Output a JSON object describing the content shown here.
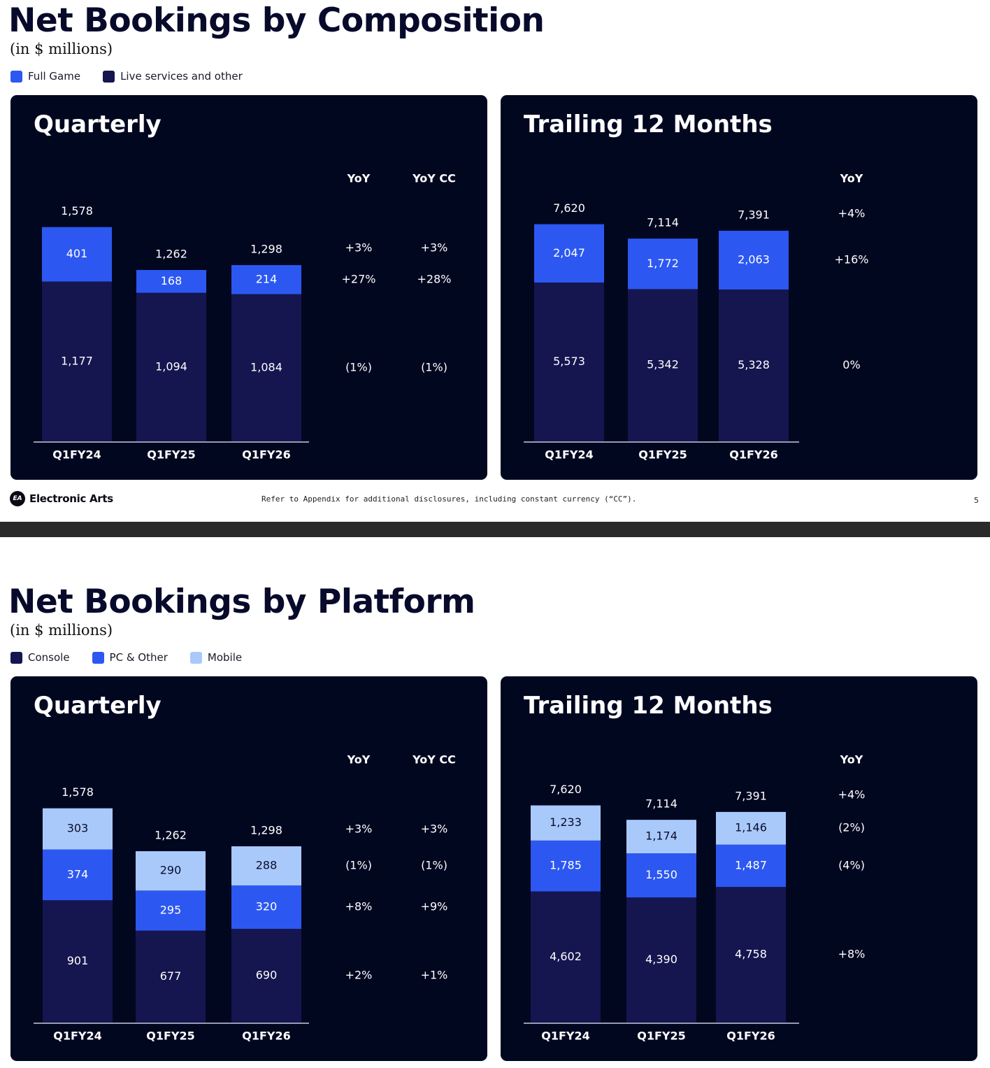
{
  "colors": {
    "panel_bg": "#020720",
    "full_game": "#2c58f1",
    "live_services": "#15154f",
    "console": "#15154f",
    "pc_other": "#2c58f1",
    "mobile": "#a9c9fb",
    "text_light": "#ffffff"
  },
  "slide1": {
    "title": "Net Bookings by Composition",
    "subtitle": "(in $ millions)",
    "legend": [
      {
        "label": "Full Game",
        "color": "#2c58f1"
      },
      {
        "label": "Live services and other",
        "color": "#15154f"
      }
    ],
    "footer": {
      "logo_text": "Electronic Arts",
      "logo_icon": "EA",
      "note": "Refer to Appendix for additional disclosures, including constant currency (“CC”).",
      "page": "5"
    }
  },
  "slide2": {
    "title": "Net Bookings by Platform",
    "subtitle": "(in $ millions)",
    "legend": [
      {
        "label": "Console",
        "color": "#15154f"
      },
      {
        "label": "PC & Other",
        "color": "#2c58f1"
      },
      {
        "label": "Mobile",
        "color": "#a9c9fb"
      }
    ]
  },
  "chart_data": [
    {
      "id": "composition_quarterly",
      "type": "bar",
      "stacked": true,
      "title": "Quarterly",
      "categories": [
        "Q1FY24",
        "Q1FY25",
        "Q1FY26"
      ],
      "series": [
        {
          "name": "Live services and other",
          "color": "#15154f",
          "values": [
            1177,
            1094,
            1084
          ],
          "labels": [
            "1,177",
            "1,094",
            "1,084"
          ]
        },
        {
          "name": "Full Game",
          "color": "#2c58f1",
          "values": [
            401,
            168,
            214
          ],
          "labels": [
            "401",
            "168",
            "214"
          ]
        }
      ],
      "totals": [
        1578,
        1262,
        1298
      ],
      "total_labels": [
        "1,578",
        "1,262",
        "1,298"
      ],
      "ylim": [
        0,
        1700
      ],
      "yoy_columns": [
        {
          "header": "YoY",
          "rows": [
            {
              "text": "+3%",
              "ref": "total"
            },
            {
              "text": "+27%",
              "ref": "Full Game"
            },
            {
              "text": "(1%)",
              "ref": "Live services and other"
            }
          ]
        },
        {
          "header": "YoY CC",
          "rows": [
            {
              "text": "+3%",
              "ref": "total"
            },
            {
              "text": "+28%",
              "ref": "Full Game"
            },
            {
              "text": "(1%)",
              "ref": "Live services and other"
            }
          ]
        }
      ]
    },
    {
      "id": "composition_ttm",
      "type": "bar",
      "stacked": true,
      "title": "Trailing 12 Months",
      "categories": [
        "Q1FY24",
        "Q1FY25",
        "Q1FY26"
      ],
      "series": [
        {
          "name": "Live services and other",
          "color": "#15154f",
          "values": [
            5573,
            5342,
            5328
          ],
          "labels": [
            "5,573",
            "5,342",
            "5,328"
          ]
        },
        {
          "name": "Full Game",
          "color": "#2c58f1",
          "values": [
            2047,
            1772,
            2063
          ],
          "labels": [
            "2,047",
            "1,772",
            "2,063"
          ]
        }
      ],
      "totals": [
        7620,
        7114,
        7391
      ],
      "total_labels": [
        "7,620",
        "7,114",
        "7,391"
      ],
      "ylim": [
        0,
        8100
      ],
      "yoy_columns": [
        {
          "header": "YoY",
          "rows": [
            {
              "text": "+4%",
              "ref": "total"
            },
            {
              "text": "+16%",
              "ref": "Full Game"
            },
            {
              "text": "0%",
              "ref": "Live services and other"
            }
          ]
        }
      ]
    },
    {
      "id": "platform_quarterly",
      "type": "bar",
      "stacked": true,
      "title": "Quarterly",
      "categories": [
        "Q1FY24",
        "Q1FY25",
        "Q1FY26"
      ],
      "series": [
        {
          "name": "Console",
          "color": "#15154f",
          "values": [
            901,
            677,
            690
          ],
          "labels": [
            "901",
            "677",
            "690"
          ]
        },
        {
          "name": "PC & Other",
          "color": "#2c58f1",
          "values": [
            374,
            295,
            320
          ],
          "labels": [
            "374",
            "295",
            "320"
          ]
        },
        {
          "name": "Mobile",
          "color": "#a9c9fb",
          "values": [
            303,
            290,
            288
          ],
          "labels": [
            "303",
            "290",
            "288"
          ]
        }
      ],
      "totals": [
        1578,
        1262,
        1298
      ],
      "total_labels": [
        "1,578",
        "1,262",
        "1,298"
      ],
      "ylim": [
        0,
        1700
      ],
      "yoy_columns": [
        {
          "header": "YoY",
          "rows": [
            {
              "text": "+3%",
              "ref": "total"
            },
            {
              "text": "(1%)",
              "ref": "Mobile"
            },
            {
              "text": "+8%",
              "ref": "PC & Other"
            },
            {
              "text": "+2%",
              "ref": "Console"
            }
          ]
        },
        {
          "header": "YoY CC",
          "rows": [
            {
              "text": "+3%",
              "ref": "total"
            },
            {
              "text": "(1%)",
              "ref": "Mobile"
            },
            {
              "text": "+9%",
              "ref": "PC & Other"
            },
            {
              "text": "+1%",
              "ref": "Console"
            }
          ]
        }
      ]
    },
    {
      "id": "platform_ttm",
      "type": "bar",
      "stacked": true,
      "title": "Trailing 12 Months",
      "categories": [
        "Q1FY24",
        "Q1FY25",
        "Q1FY26"
      ],
      "series": [
        {
          "name": "Console",
          "color": "#15154f",
          "values": [
            4602,
            4390,
            4758
          ],
          "labels": [
            "4,602",
            "4,390",
            "4,758"
          ]
        },
        {
          "name": "PC & Other",
          "color": "#2c58f1",
          "values": [
            1785,
            1550,
            1487
          ],
          "labels": [
            "1,785",
            "1,550",
            "1,487"
          ]
        },
        {
          "name": "Mobile",
          "color": "#a9c9fb",
          "values": [
            1233,
            1174,
            1146
          ],
          "labels": [
            "1,233",
            "1,174",
            "1,146"
          ]
        }
      ],
      "totals": [
        7620,
        7114,
        7391
      ],
      "total_labels": [
        "7,620",
        "7,114",
        "7,391"
      ],
      "ylim": [
        0,
        8100
      ],
      "yoy_columns": [
        {
          "header": "YoY",
          "rows": [
            {
              "text": "+4%",
              "ref": "total"
            },
            {
              "text": "(2%)",
              "ref": "Mobile"
            },
            {
              "text": "(4%)",
              "ref": "PC & Other"
            },
            {
              "text": "+8%",
              "ref": "Console"
            }
          ]
        }
      ]
    }
  ]
}
